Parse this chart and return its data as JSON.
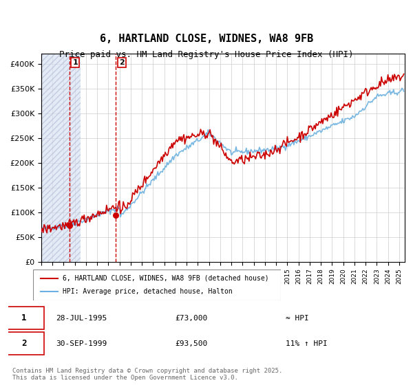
{
  "title": "6, HARTLAND CLOSE, WIDNES, WA8 9FB",
  "subtitle": "Price paid vs. HM Land Registry's House Price Index (HPI)",
  "legend_line1": "6, HARTLAND CLOSE, WIDNES, WA8 9FB (detached house)",
  "legend_line2": "HPI: Average price, detached house, Halton",
  "sale1_date": "28-JUL-1995",
  "sale1_price": 73000,
  "sale1_hpi": "≈ HPI",
  "sale2_date": "30-SEP-1999",
  "sale2_price": 93500,
  "sale2_hpi": "11% ↑ HPI",
  "footer": "Contains HM Land Registry data © Crown copyright and database right 2025.\nThis data is licensed under the Open Government Licence v3.0.",
  "hpi_color": "#6ab0e0",
  "price_color": "#cc0000",
  "sale_color": "#cc0000",
  "bg_hatch_color": "#e8e8f8",
  "ylim": [
    0,
    420000
  ],
  "yticks": [
    0,
    50000,
    100000,
    150000,
    200000,
    250000,
    300000,
    350000,
    400000
  ]
}
